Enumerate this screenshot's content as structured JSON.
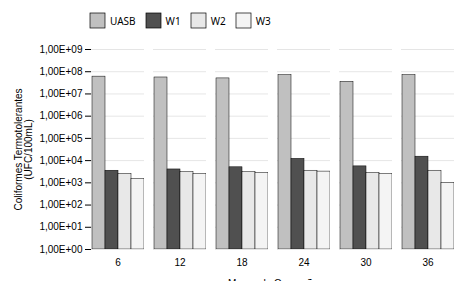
{
  "chart_data": {
    "type": "bar",
    "categories": [
      6,
      12,
      18,
      24,
      30,
      36
    ],
    "series": [
      {
        "name": "UASB",
        "color": "#c0c0c0",
        "values": [
          60000000,
          55000000,
          50000000,
          70000000,
          35000000,
          70000000
        ]
      },
      {
        "name": "W1",
        "color": "#505050",
        "values": [
          3500,
          4000,
          5000,
          12000,
          5500,
          15000
        ]
      },
      {
        "name": "W2",
        "color": "#e8e8e8",
        "values": [
          2500,
          3000,
          3000,
          3500,
          2800,
          3500
        ]
      },
      {
        "name": "W3",
        "color": "#f4f4f4",
        "values": [
          1500,
          2500,
          2800,
          3200,
          2500,
          1000
        ]
      }
    ],
    "xlabel": "Meses de Operação",
    "ylabel": "Coliformes Termotolerantes\n(UFC/100mL)",
    "log": "y",
    "ylim": [
      1,
      1000000000
    ],
    "yticks": [
      {
        "value": 1,
        "label": "1,00E+00"
      },
      {
        "value": 10,
        "label": "1,00E+01"
      },
      {
        "value": 100,
        "label": "1,00E+02"
      },
      {
        "value": 1000,
        "label": "1,00E+03"
      },
      {
        "value": 10000,
        "label": "1,00E+04"
      },
      {
        "value": 100000,
        "label": "1,00E+05"
      },
      {
        "value": 1000000,
        "label": "1,00E+06"
      },
      {
        "value": 10000000,
        "label": "1,00E+07"
      },
      {
        "value": 100000000,
        "label": "1,00E+08"
      },
      {
        "value": 1000000000,
        "label": "1,00E+09"
      }
    ],
    "grid": true,
    "legend": "top"
  }
}
